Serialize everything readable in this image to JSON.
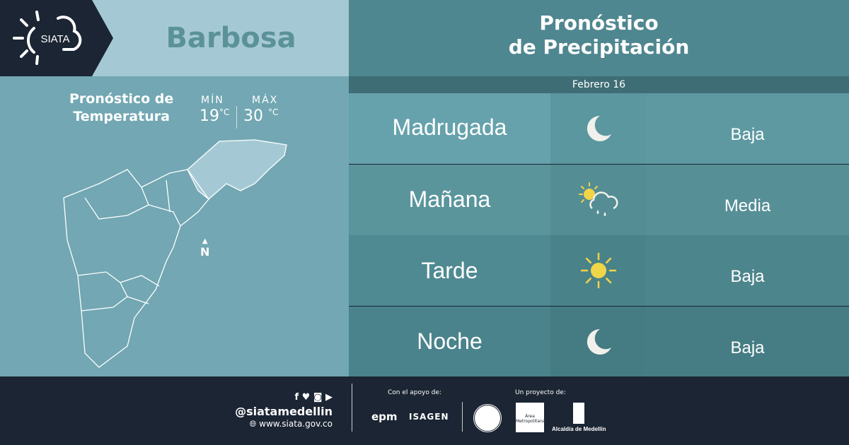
{
  "brand": {
    "logo_text": "SIATA"
  },
  "city": "Barbosa",
  "temperature": {
    "title_line1": "Pronóstico de",
    "title_line2": "Temperatura",
    "min_label": "MÍN",
    "max_label": "MÁX",
    "min_value": "19",
    "max_value": "30",
    "unit": "°C"
  },
  "map": {
    "north_label": "N",
    "highlight_color": "#a5c9d4"
  },
  "precip": {
    "title_line1": "Pronóstico",
    "title_line2": "de Precipitación",
    "date": "Febrero 16",
    "rows": [
      {
        "period": "Madrugada",
        "icon": "moon-icon",
        "level": "Baja"
      },
      {
        "period": "Mañana",
        "icon": "sun-cloud-rain-icon",
        "level": "Media"
      },
      {
        "period": "Tarde",
        "icon": "sun-icon",
        "level": "Baja"
      },
      {
        "period": "Noche",
        "icon": "moon-icon",
        "level": "Baja"
      }
    ]
  },
  "footer": {
    "handle": "@siatamedellin",
    "website": "www.siata.gov.co",
    "support_label": "Con el apoyo de:",
    "project_label": "Un proyecto de:",
    "sponsors": [
      "epm",
      "ISAGEN"
    ],
    "partners": [
      "Área Metropolitana",
      "Alcaldía de Medellín"
    ]
  }
}
